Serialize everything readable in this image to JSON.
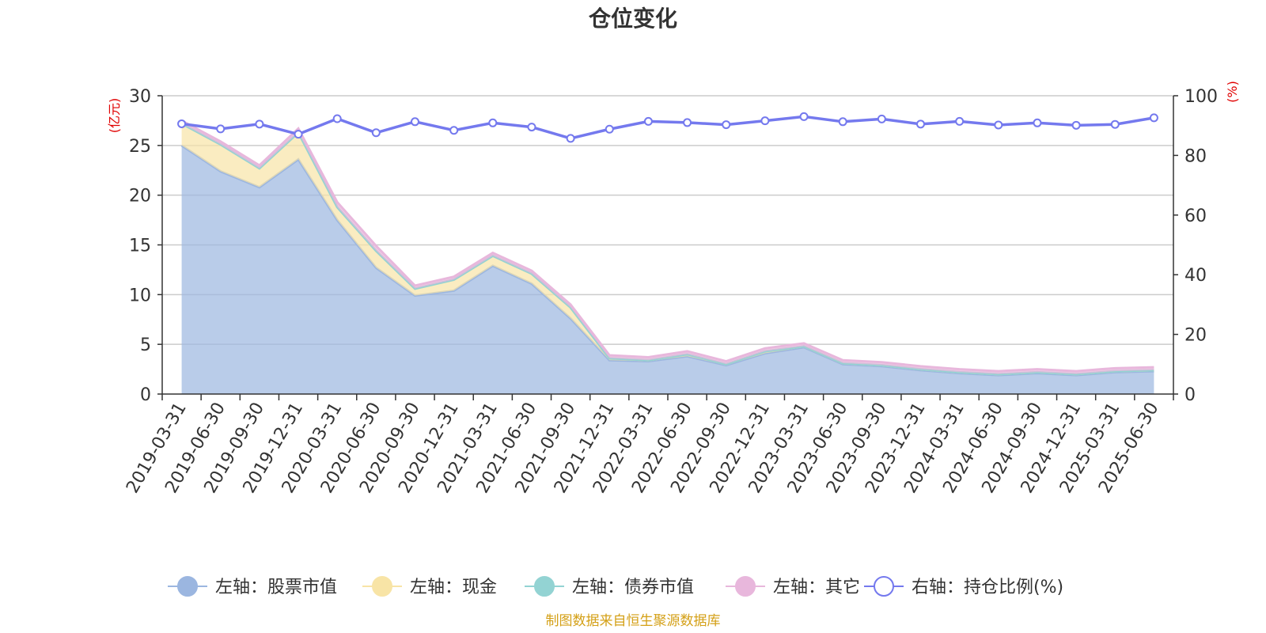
{
  "chart_data": {
    "type": "area",
    "title": "仓位变化",
    "left_unit": "(亿元)",
    "right_unit": "(%)",
    "ylim_left": [
      0,
      30
    ],
    "yticks_left": [
      0,
      5,
      10,
      15,
      20,
      25,
      30
    ],
    "ylim_right": [
      0,
      100
    ],
    "yticks_right": [
      0,
      20,
      40,
      60,
      80,
      100
    ],
    "grid": true,
    "legend_position": "bottom",
    "categories": [
      "2019-03-31",
      "2019-06-30",
      "2019-09-30",
      "2019-12-31",
      "2020-03-31",
      "2020-06-30",
      "2020-09-30",
      "2020-12-31",
      "2021-03-31",
      "2021-06-30",
      "2021-09-30",
      "2021-12-31",
      "2022-03-31",
      "2022-06-30",
      "2022-09-30",
      "2022-12-31",
      "2023-03-31",
      "2023-06-30",
      "2023-09-30",
      "2023-12-31",
      "2024-03-31",
      "2024-06-30",
      "2024-09-30",
      "2024-12-31",
      "2025-03-31",
      "2025-06-30"
    ],
    "series": [
      {
        "name": "左轴：股票市值",
        "axis": "left",
        "kind": "stacked-area",
        "color": "#9bb6e0",
        "values": [
          25.0,
          22.4,
          20.8,
          23.6,
          17.5,
          12.7,
          9.9,
          10.4,
          12.9,
          11.1,
          7.6,
          3.4,
          3.3,
          3.8,
          2.9,
          4.1,
          4.7,
          3.0,
          2.8,
          2.4,
          2.1,
          1.9,
          2.1,
          1.9,
          2.2,
          2.3
        ]
      },
      {
        "name": "左轴：现金",
        "axis": "left",
        "kind": "stacked-area",
        "color": "#f8e4a6",
        "values": [
          2.2,
          2.7,
          1.9,
          2.7,
          1.3,
          1.7,
          0.7,
          1.1,
          1.0,
          1.0,
          1.1,
          0.2,
          0.1,
          0.2,
          0.1,
          0.2,
          0.1,
          0.1,
          0.1,
          0.1,
          0.1,
          0.1,
          0.1,
          0.1,
          0.1,
          0.1
        ]
      },
      {
        "name": "左轴：债券市值",
        "axis": "left",
        "kind": "stacked-area",
        "color": "#93d3d3",
        "values": [
          0,
          0,
          0,
          0,
          0,
          0,
          0,
          0,
          0,
          0,
          0,
          0,
          0,
          0,
          0,
          0,
          0,
          0,
          0,
          0,
          0,
          0,
          0,
          0,
          0,
          0
        ]
      },
      {
        "name": "左轴：其它",
        "axis": "left",
        "kind": "stacked-area",
        "color": "#e8b7dc",
        "values": [
          0.3,
          0.3,
          0.3,
          0.4,
          0.5,
          0.5,
          0.3,
          0.3,
          0.3,
          0.3,
          0.3,
          0.3,
          0.3,
          0.3,
          0.3,
          0.3,
          0.3,
          0.3,
          0.3,
          0.3,
          0.3,
          0.3,
          0.3,
          0.3,
          0.3,
          0.3
        ]
      },
      {
        "name": "右轴：持仓比例(%)",
        "axis": "right",
        "kind": "line",
        "color": "#7479ee",
        "values": [
          90.6,
          88.9,
          90.5,
          87.1,
          92.3,
          87.6,
          91.3,
          88.4,
          90.9,
          89.5,
          85.7,
          88.8,
          91.4,
          91.0,
          90.3,
          91.6,
          93.0,
          91.3,
          92.2,
          90.5,
          91.4,
          90.2,
          90.9,
          90.1,
          90.4,
          92.6
        ]
      }
    ]
  },
  "source_text": "制图数据来自恒生聚源数据库"
}
